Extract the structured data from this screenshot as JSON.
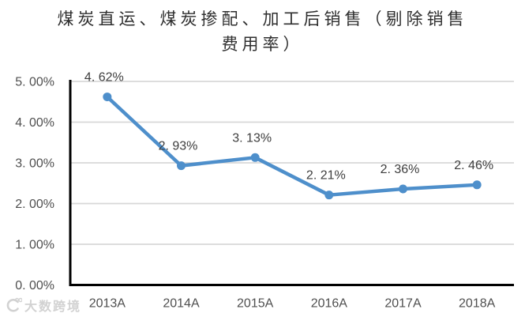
{
  "title": {
    "line1": "煤炭直运、煤炭掺配、加工后销售（剔除销售",
    "line2": "费用率）"
  },
  "watermark": {
    "text": "大数跨境"
  },
  "chart_data": {
    "type": "line",
    "title": "煤炭直运、煤炭掺配、加工后销售（剔除销售费用率）",
    "categories": [
      "2013A",
      "2014A",
      "2015A",
      "2016A",
      "2017A",
      "2018A"
    ],
    "values": [
      4.62,
      2.93,
      3.13,
      2.21,
      2.36,
      2.46
    ],
    "point_labels": [
      "4. 62%",
      "2. 93%",
      "3. 13%",
      "2. 21%",
      "2. 36%",
      "2. 46%"
    ],
    "xlabel": "",
    "ylabel": "",
    "ylim": [
      0,
      5
    ],
    "yticks": [
      {
        "value": 0,
        "label": "0. 00%"
      },
      {
        "value": 1,
        "label": "1. 00%"
      },
      {
        "value": 2,
        "label": "2. 00%"
      },
      {
        "value": 3,
        "label": "3. 00%"
      },
      {
        "value": 4,
        "label": "4. 00%"
      },
      {
        "value": 5,
        "label": "5. 00%"
      }
    ],
    "grid": true,
    "legend": "none",
    "colors": {
      "series": "#4E8FCB",
      "grid": "#D8D8D8",
      "axis": "#000000",
      "tick_text": "#4f4f4f",
      "data_label_text": "#3d3d3d",
      "background": "#ffffff",
      "watermark": "#d2d2d2"
    }
  }
}
